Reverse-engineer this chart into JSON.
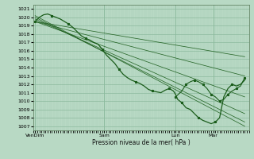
{
  "xlabel": "Pression niveau de la mer( hPa )",
  "ylim": [
    1006.5,
    1021.5
  ],
  "yticks": [
    1007,
    1008,
    1009,
    1010,
    1011,
    1012,
    1013,
    1014,
    1015,
    1016,
    1017,
    1018,
    1019,
    1020,
    1021
  ],
  "xtick_positions": [
    0.0,
    0.33,
    0.67,
    0.85
  ],
  "xtick_labels": [
    "VenDim",
    "Sam",
    "Lun",
    "Mar"
  ],
  "bg_color": "#b8d9c4",
  "grid_major_color": "#8cba9e",
  "grid_minor_color": "#a8ceb6",
  "line_color": "#1a5c1a",
  "figsize": [
    3.2,
    2.0
  ],
  "dpi": 100,
  "fan_lines": [
    {
      "x": [
        0.0,
        1.0
      ],
      "y": [
        1019.5,
        1015.3
      ]
    },
    {
      "x": [
        0.0,
        1.0
      ],
      "y": [
        1019.5,
        1013.0
      ]
    },
    {
      "x": [
        0.0,
        1.0
      ],
      "y": [
        1019.5,
        1010.5
      ]
    },
    {
      "x": [
        0.0,
        1.0
      ],
      "y": [
        1019.8,
        1008.5
      ]
    },
    {
      "x": [
        0.0,
        1.0
      ],
      "y": [
        1020.0,
        1007.5
      ]
    },
    {
      "x": [
        0.0,
        1.0
      ],
      "y": [
        1020.2,
        1007.0
      ]
    }
  ],
  "main_line_x": [
    0.0,
    0.02,
    0.04,
    0.06,
    0.08,
    0.1,
    0.12,
    0.14,
    0.16,
    0.18,
    0.2,
    0.22,
    0.24,
    0.26,
    0.28,
    0.3,
    0.32,
    0.34,
    0.36,
    0.38,
    0.4,
    0.42,
    0.44,
    0.46,
    0.48,
    0.5,
    0.52,
    0.54,
    0.56,
    0.58,
    0.6,
    0.62,
    0.64,
    0.66,
    0.67,
    0.68,
    0.7,
    0.72,
    0.74,
    0.76,
    0.78,
    0.8,
    0.82,
    0.84,
    0.86,
    0.88,
    0.9,
    0.92,
    0.94,
    0.96,
    0.98,
    1.0
  ],
  "main_line_y": [
    1019.5,
    1020.0,
    1020.3,
    1020.4,
    1020.2,
    1020.0,
    1019.8,
    1019.5,
    1019.2,
    1018.8,
    1018.3,
    1017.8,
    1017.5,
    1017.3,
    1017.0,
    1016.8,
    1016.2,
    1015.5,
    1015.0,
    1014.5,
    1013.8,
    1013.2,
    1012.8,
    1012.5,
    1012.3,
    1012.1,
    1011.8,
    1011.4,
    1011.2,
    1011.1,
    1011.0,
    1011.3,
    1011.5,
    1011.2,
    1010.8,
    1010.2,
    1009.8,
    1009.2,
    1009.0,
    1008.5,
    1008.0,
    1007.7,
    1007.5,
    1007.3,
    1007.5,
    1008.0,
    1010.5,
    1011.5,
    1012.0,
    1011.8,
    1012.0,
    1012.5
  ],
  "extra_line_x": [
    0.67,
    0.7,
    0.72,
    0.74,
    0.76,
    0.78,
    0.8,
    0.82,
    0.84,
    0.86,
    0.88,
    0.9,
    0.92,
    0.94,
    0.96,
    0.98,
    1.0
  ],
  "extra_line_y": [
    1010.5,
    1011.2,
    1012.0,
    1012.3,
    1012.5,
    1012.3,
    1012.0,
    1011.5,
    1010.8,
    1010.5,
    1010.0,
    1010.2,
    1010.8,
    1011.2,
    1011.5,
    1011.8,
    1012.8
  ]
}
